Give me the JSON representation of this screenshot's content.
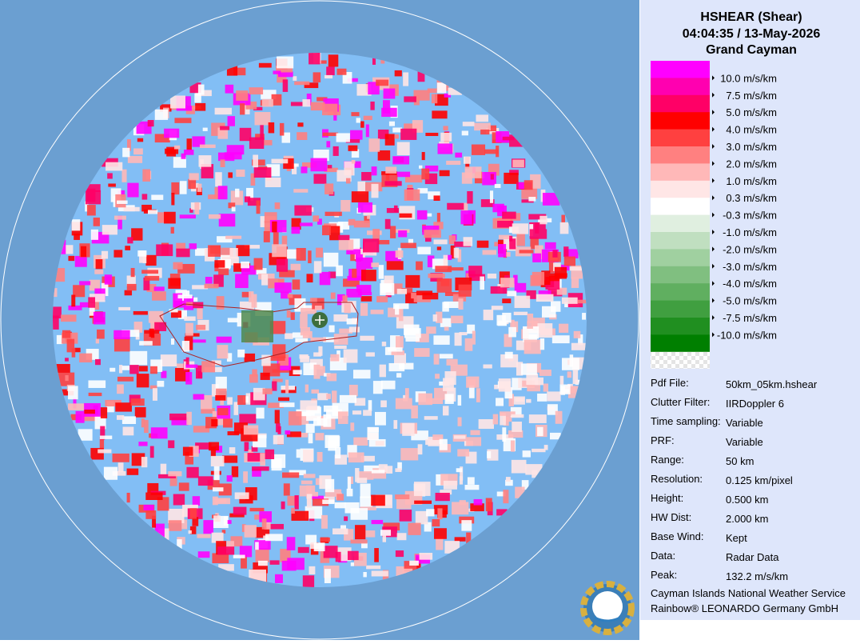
{
  "header": {
    "title": "HSHEAR (Shear)",
    "datetime": "04:04:35 / 13-May-2026",
    "site": "Grand Cayman"
  },
  "legend": [
    {
      "label": "10.0 m/s/km",
      "color": "#ff00ff"
    },
    {
      "label": "7.5 m/s/km",
      "color": "#ff00b0"
    },
    {
      "label": "5.0 m/s/km",
      "color": "#ff0066"
    },
    {
      "label": "4.0 m/s/km",
      "color": "#ff0000"
    },
    {
      "label": "3.0 m/s/km",
      "color": "#ff4040"
    },
    {
      "label": "2.0 m/s/km",
      "color": "#ff8080"
    },
    {
      "label": "1.0 m/s/km",
      "color": "#ffb8b8"
    },
    {
      "label": "0.3 m/s/km",
      "color": "#ffe6e6"
    },
    {
      "label": "-0.3 m/s/km",
      "color": "#ffffff"
    },
    {
      "label": "-1.0 m/s/km",
      "color": "#e0efe0"
    },
    {
      "label": "-2.0 m/s/km",
      "color": "#c0dfc0"
    },
    {
      "label": "-3.0 m/s/km",
      "color": "#a0d0a0"
    },
    {
      "label": "-4.0 m/s/km",
      "color": "#80bf80"
    },
    {
      "label": "-5.0 m/s/km",
      "color": "#60af60"
    },
    {
      "label": "-7.5 m/s/km",
      "color": "#409f40"
    },
    {
      "label": "-10.0 m/s/km",
      "color": "#208f20"
    },
    {
      "label": null,
      "color": "#007f00"
    }
  ],
  "info": [
    {
      "label": "Pdf File:",
      "value": "50km_05km.hshear"
    },
    {
      "label": "Clutter Filter:",
      "value": "IIRDoppler 6"
    },
    {
      "label": "Time sampling:",
      "value": "Variable"
    },
    {
      "label": "PRF:",
      "value": "Variable"
    },
    {
      "label": "Range:",
      "value": "50 km"
    },
    {
      "label": "Resolution:",
      "value": "0.125 km/pixel"
    },
    {
      "label": "Height:",
      "value": "0.500 km"
    },
    {
      "label": "HW Dist:",
      "value": "2.000 km"
    },
    {
      "label": "Base Wind:",
      "value": "Kept"
    },
    {
      "label": "Data:",
      "value": "Radar Data"
    },
    {
      "label": "Peak:",
      "value": "132.2 m/s/km"
    }
  ],
  "footer": [
    "Cayman Islands National Weather Service",
    "Rainbow® LEONARDO Germany GmbH"
  ]
}
